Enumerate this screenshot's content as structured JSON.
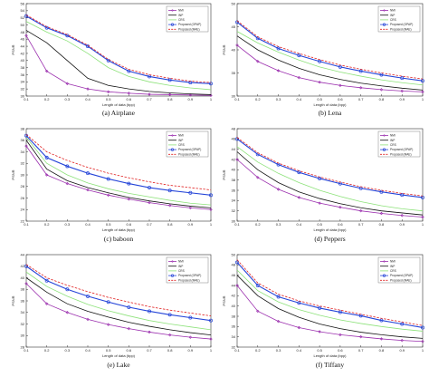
{
  "figure": {
    "series_colors": [
      "#9b2fae",
      "#111111",
      "#8de27a",
      "#2444d8",
      "#e02020"
    ],
    "series_styles": [
      "marker-diamond",
      "solid",
      "solid",
      "marker-circle",
      "dashed"
    ]
  },
  "chart_data": [
    {
      "type": "line",
      "caption": "(a) Airplane",
      "xlabel": "Length of data (bpp)",
      "ylabel": "PSNR",
      "xlim": [
        0.1,
        1
      ],
      "ylim": [
        30,
        56
      ],
      "xticks": [
        "0.1",
        "0.2",
        "0.3",
        "0.4",
        "0.5",
        "0.6",
        "0.7",
        "0.8",
        "0.9",
        "1"
      ],
      "yticks": [
        "30",
        "32",
        "34",
        "36",
        "38",
        "40",
        "42",
        "44",
        "46",
        "48",
        "50",
        "52",
        "54",
        "56"
      ],
      "legend": "top-right",
      "x": [
        0.1,
        0.2,
        0.3,
        0.4,
        0.5,
        0.6,
        0.7,
        0.8,
        0.9,
        1.0
      ],
      "series": [
        {
          "name": "NMI",
          "values": [
            47,
            37,
            33.5,
            32,
            31.2,
            30.8,
            30.5,
            30.4,
            30.3,
            30.2
          ]
        },
        {
          "name": "INP",
          "values": [
            48.5,
            45,
            40,
            35,
            33,
            32,
            31.3,
            30.9,
            30.6,
            30.4
          ]
        },
        {
          "name": "CRS",
          "values": [
            51,
            48,
            45.5,
            42,
            38,
            35.5,
            34,
            33,
            32.3,
            31.8
          ]
        },
        {
          "name": "Proposed (OPAP)",
          "values": [
            52.5,
            49.2,
            47,
            44,
            40,
            37,
            35.5,
            34.5,
            33.8,
            33.5
          ]
        },
        {
          "name": "Proposed (MAE)",
          "values": [
            52.8,
            49.5,
            47.3,
            44.3,
            40.3,
            37.5,
            36,
            35,
            34.2,
            33.8
          ]
        }
      ]
    },
    {
      "type": "line",
      "caption": "(b) Lena",
      "xlabel": "Length of data (bpp)",
      "ylabel": "PSNR",
      "xlim": [
        0.1,
        1
      ],
      "ylim": [
        30,
        50
      ],
      "xticks": [
        "0.1",
        "0.2",
        "0.3",
        "0.4",
        "0.5",
        "0.6",
        "0.7",
        "0.8",
        "0.9",
        "1"
      ],
      "yticks": [
        "30",
        "35",
        "40",
        "45",
        "50"
      ],
      "legend": "top-right",
      "x": [
        0.1,
        0.2,
        0.3,
        0.4,
        0.5,
        0.6,
        0.7,
        0.8,
        0.9,
        1.0
      ],
      "series": [
        {
          "name": "NMI",
          "values": [
            41,
            37.5,
            35.5,
            34,
            33,
            32.3,
            31.8,
            31.4,
            31.1,
            30.9
          ]
        },
        {
          "name": "INP",
          "values": [
            43,
            40,
            37.8,
            36,
            34.6,
            33.6,
            32.8,
            32.2,
            31.7,
            31.3
          ]
        },
        {
          "name": "CRS",
          "values": [
            44,
            41.5,
            39.5,
            37.8,
            36.3,
            35.2,
            34.3,
            33.5,
            32.9,
            32.4
          ]
        },
        {
          "name": "Proposed (OPAP)",
          "values": [
            46,
            42.5,
            40.3,
            38.8,
            37.5,
            36.3,
            35.4,
            34.6,
            33.9,
            33.3
          ]
        },
        {
          "name": "Proposed (MAE)",
          "values": [
            46.3,
            42.8,
            40.7,
            39.2,
            37.9,
            36.7,
            35.8,
            35,
            34.3,
            33.7
          ]
        }
      ]
    },
    {
      "type": "line",
      "caption": "(c) baboon",
      "xlabel": "Length of data (bpp)",
      "ylabel": "PSNR",
      "xlim": [
        0.1,
        1
      ],
      "ylim": [
        22,
        38
      ],
      "xticks": [
        "0.1",
        "0.2",
        "0.3",
        "0.4",
        "0.5",
        "0.6",
        "0.7",
        "0.8",
        "0.9",
        "1"
      ],
      "yticks": [
        "22",
        "24",
        "26",
        "28",
        "30",
        "32",
        "34",
        "36",
        "38"
      ],
      "legend": "top-right",
      "x": [
        0.1,
        0.2,
        0.3,
        0.4,
        0.5,
        0.6,
        0.7,
        0.8,
        0.9,
        1.0
      ],
      "series": [
        {
          "name": "NMI",
          "values": [
            35,
            30,
            28.5,
            27.4,
            26.5,
            25.8,
            25.2,
            24.7,
            24.3,
            24
          ]
        },
        {
          "name": "INP",
          "values": [
            36,
            31,
            29,
            27.8,
            26.9,
            26.1,
            25.5,
            25,
            24.6,
            24.3
          ]
        },
        {
          "name": "CRS",
          "values": [
            36.5,
            32,
            30,
            28.6,
            27.6,
            26.8,
            26.2,
            25.6,
            25.1,
            24.8
          ]
        },
        {
          "name": "Proposed (OPAP)",
          "values": [
            36.8,
            33,
            31.5,
            30.3,
            29.3,
            28.5,
            27.8,
            27.3,
            26.9,
            26.5
          ]
        },
        {
          "name": "Proposed (MAE)",
          "values": [
            37,
            34,
            32.5,
            31.3,
            30.3,
            29.5,
            28.8,
            28.2,
            27.8,
            27.4
          ]
        }
      ]
    },
    {
      "type": "line",
      "caption": "(d) Peppers",
      "xlabel": "Length of data (bpp)",
      "ylabel": "PSNR",
      "xlim": [
        0.1,
        1
      ],
      "ylim": [
        30,
        48
      ],
      "xticks": [
        "0.1",
        "0.2",
        "0.3",
        "0.4",
        "0.5",
        "0.6",
        "0.7",
        "0.8",
        "0.9",
        "1"
      ],
      "yticks": [
        "30",
        "32",
        "34",
        "36",
        "38",
        "40",
        "42",
        "44",
        "46",
        "48"
      ],
      "legend": "top-right",
      "x": [
        0.1,
        0.2,
        0.3,
        0.4,
        0.5,
        0.6,
        0.7,
        0.8,
        0.9,
        1.0
      ],
      "series": [
        {
          "name": "NMI",
          "values": [
            42,
            38.5,
            36.2,
            34.6,
            33.5,
            32.7,
            32,
            31.5,
            31.1,
            30.8
          ]
        },
        {
          "name": "INP",
          "values": [
            43.5,
            40,
            37.5,
            35.7,
            34.4,
            33.4,
            32.6,
            32,
            31.6,
            31.2
          ]
        },
        {
          "name": "CRS",
          "values": [
            44.5,
            41.5,
            39.3,
            37.5,
            36,
            34.8,
            33.8,
            33,
            32.4,
            32
          ]
        },
        {
          "name": "Proposed (OPAP)",
          "values": [
            46,
            43,
            41,
            39.5,
            38.3,
            37.3,
            36.4,
            35.7,
            35.1,
            34.6
          ]
        },
        {
          "name": "Proposed (MAE)",
          "values": [
            46.3,
            43.3,
            41.3,
            39.8,
            38.6,
            37.6,
            36.7,
            36,
            35.4,
            34.9
          ]
        }
      ]
    },
    {
      "type": "line",
      "caption": "(e) Lake",
      "xlabel": "Length of data (bpp)",
      "ylabel": "PSNR",
      "xlim": [
        0.1,
        1
      ],
      "ylim": [
        28,
        44
      ],
      "xticks": [
        "0.1",
        "0.2",
        "0.3",
        "0.4",
        "0.5",
        "0.6",
        "0.7",
        "0.8",
        "0.9",
        "1"
      ],
      "yticks": [
        "28",
        "30",
        "32",
        "34",
        "36",
        "38",
        "40",
        "42",
        "44"
      ],
      "legend": "top-right",
      "x": [
        0.1,
        0.2,
        0.3,
        0.4,
        0.5,
        0.6,
        0.7,
        0.8,
        0.9,
        1.0
      ],
      "series": [
        {
          "name": "NMI",
          "values": [
            39,
            35.5,
            34,
            32.8,
            31.9,
            31.2,
            30.6,
            30.1,
            29.7,
            29.4
          ]
        },
        {
          "name": "INP",
          "values": [
            40,
            37.5,
            35.5,
            34.2,
            33.2,
            32.3,
            31.6,
            31,
            30.5,
            30.1
          ]
        },
        {
          "name": "CRS",
          "values": [
            41,
            38.5,
            36.8,
            35.4,
            34.3,
            33.4,
            32.6,
            32,
            31.5,
            31
          ]
        },
        {
          "name": "Proposed (OPAP)",
          "values": [
            42,
            39.5,
            38,
            36.8,
            35.8,
            34.9,
            34.2,
            33.6,
            33.1,
            32.6
          ]
        },
        {
          "name": "Proposed (MAE)",
          "values": [
            42.3,
            40,
            38.7,
            37.6,
            36.6,
            35.8,
            35,
            34.4,
            33.9,
            33.4
          ]
        }
      ]
    },
    {
      "type": "line",
      "caption": "(f) Tiffany",
      "xlabel": "Length of data (bpp)",
      "ylabel": "PSNR",
      "xlim": [
        0.1,
        1
      ],
      "ylim": [
        32,
        50
      ],
      "xticks": [
        "0.1",
        "0.2",
        "0.3",
        "0.4",
        "0.5",
        "0.6",
        "0.7",
        "0.8",
        "0.9",
        "1"
      ],
      "yticks": [
        "32",
        "34",
        "36",
        "38",
        "40",
        "42",
        "44",
        "46",
        "48",
        "50"
      ],
      "legend": "top-right",
      "x": [
        0.1,
        0.2,
        0.3,
        0.4,
        0.5,
        0.6,
        0.7,
        0.8,
        0.9,
        1.0
      ],
      "series": [
        {
          "name": "NMI",
          "values": [
            44,
            39,
            37,
            35.8,
            35,
            34.4,
            34,
            33.6,
            33.3,
            33.1
          ]
        },
        {
          "name": "INP",
          "values": [
            46,
            42,
            39.5,
            37.8,
            36.5,
            35.6,
            34.9,
            34.4,
            34,
            33.7
          ]
        },
        {
          "name": "CRS",
          "values": [
            47,
            43,
            40.8,
            39.3,
            38.2,
            37.3,
            36.6,
            36,
            35.5,
            35.1
          ]
        },
        {
          "name": "Proposed (OPAP)",
          "values": [
            48.5,
            44,
            41.8,
            40.6,
            39.6,
            38.8,
            38.1,
            37.2,
            36.5,
            35.8
          ]
        },
        {
          "name": "Proposed (MAE)",
          "values": [
            49,
            44.5,
            42.3,
            41,
            40,
            39.2,
            38.4,
            37.6,
            36.9,
            36.2
          ]
        }
      ]
    }
  ]
}
